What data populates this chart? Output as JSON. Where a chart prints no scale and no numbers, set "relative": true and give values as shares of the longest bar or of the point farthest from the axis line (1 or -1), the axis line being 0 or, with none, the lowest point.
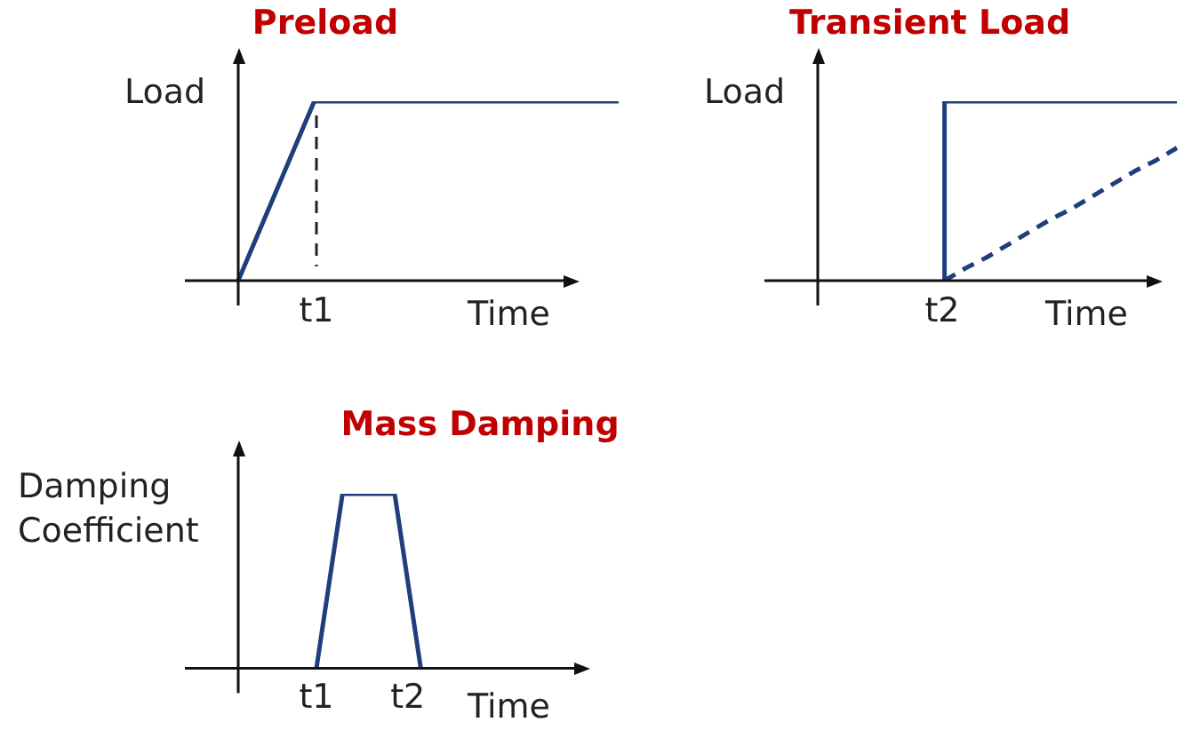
{
  "chart_data": [
    {
      "type": "line",
      "title": "Preload",
      "ylabel": "Load",
      "xlabel": "Time",
      "relative": true,
      "legend": false,
      "marker": "none",
      "annotations": [
        "t1"
      ],
      "categories": [
        null,
        null,
        null,
        null,
        null,
        null,
        null,
        null,
        null,
        null,
        null
      ],
      "series": [
        {
          "color": "#1f3f7a",
          "values": [
            0,
            0.5,
            1,
            1,
            1,
            1,
            1,
            1,
            1,
            1,
            1
          ]
        }
      ]
    },
    {
      "type": "line",
      "title": "Transient Load",
      "ylabel": "Load",
      "xlabel": "Time",
      "relative": true,
      "legend": false,
      "marker": "none",
      "annotations": [
        "t2"
      ],
      "categories": [
        null,
        null,
        null,
        null,
        null,
        null,
        null,
        null,
        null,
        null,
        null,
        null,
        null,
        null,
        null,
        null,
        null,
        null
      ],
      "series": [
        {
          "type": "step",
          "color": "#1f3f7a",
          "values": [
            null,
            null,
            null,
            null,
            null,
            null,
            0,
            1,
            1,
            1,
            1,
            1,
            1,
            1,
            1,
            1,
            1,
            1
          ]
        },
        {
          "color": "#1f3f7a",
          "line_style": "dashed",
          "values": [
            null,
            null,
            null,
            null,
            null,
            null,
            0,
            0.07,
            0.13,
            0.2,
            0.27,
            0.34,
            0.4,
            0.47,
            0.54,
            0.61,
            0.67,
            0.74
          ]
        }
      ]
    },
    {
      "type": "line",
      "title": "Mass Damping",
      "ylabel": "Damping Coefficient",
      "xlabel": "Time",
      "relative": true,
      "tick_labels": "x",
      "legend": false,
      "marker": "none",
      "categories": [
        null,
        null,
        null,
        null,
        null,
        null,
        "t1",
        null,
        null,
        null,
        null,
        null,
        null,
        "t2",
        null,
        null,
        null,
        null,
        null,
        null,
        null,
        null,
        null,
        null,
        null,
        null,
        null,
        null
      ],
      "series": [
        {
          "color": "#1f3f7a",
          "values": [
            null,
            null,
            null,
            null,
            null,
            null,
            0,
            0.5,
            1,
            1,
            1,
            1,
            1,
            0.5,
            0,
            null,
            null,
            null,
            null,
            null,
            null,
            null,
            null,
            null,
            null,
            null,
            null,
            null
          ]
        }
      ]
    }
  ]
}
